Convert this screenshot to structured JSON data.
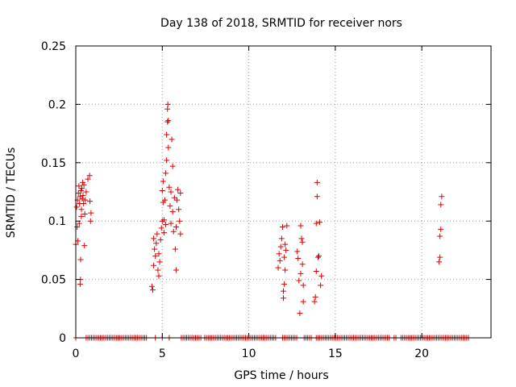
{
  "chart_data": {
    "type": "scatter",
    "title": "Day 138 of 2018, SRMTID for receiver nors",
    "xlabel": "GPS time / hours",
    "ylabel": "SRMTID / TECUs",
    "xlim": [
      0,
      24
    ],
    "ylim": [
      0,
      0.25
    ],
    "xticks": [
      0,
      5,
      10,
      15,
      20
    ],
    "xtick_labels": [
      "0",
      "5",
      "10",
      "15",
      "20"
    ],
    "yticks": [
      0,
      0.05,
      0.1,
      0.15,
      0.2,
      0.25
    ],
    "ytick_labels": [
      "0",
      "0.05",
      "0.1",
      "0.15",
      "0.2",
      "0.25"
    ],
    "grid": true,
    "marker": "+",
    "colors": {
      "points": "#e00000",
      "grid": "#a0a0a0",
      "axis": "#000000"
    },
    "series": [
      {
        "name": "SRMTID",
        "points": [
          [
            0.0,
            0.08
          ],
          [
            0.05,
            0.112
          ],
          [
            0.08,
            0.095
          ],
          [
            0.1,
            0.118
          ],
          [
            0.12,
            0.083
          ],
          [
            0.15,
            0.124
          ],
          [
            0.18,
            0.13
          ],
          [
            0.2,
            0.098
          ],
          [
            0.22,
            0.115
          ],
          [
            0.25,
            0.121
          ],
          [
            0.25,
            0.046
          ],
          [
            0.27,
            0.05
          ],
          [
            0.28,
            0.067
          ],
          [
            0.3,
            0.126
          ],
          [
            0.32,
            0.104
          ],
          [
            0.33,
            0.11
          ],
          [
            0.35,
            0.128
          ],
          [
            0.37,
            0.119
          ],
          [
            0.4,
            0.133
          ],
          [
            0.42,
            0.122
          ],
          [
            0.45,
            0.115
          ],
          [
            0.47,
            0.131
          ],
          [
            0.5,
            0.079
          ],
          [
            0.52,
            0.106
          ],
          [
            0.55,
            0.118
          ],
          [
            0.6,
            0.125
          ],
          [
            0.7,
            0.136
          ],
          [
            0.8,
            0.139
          ],
          [
            0.82,
            0.117
          ],
          [
            0.85,
            0.1
          ],
          [
            0.88,
            0.107
          ],
          [
            4.4,
            0.044
          ],
          [
            4.45,
            0.041
          ],
          [
            4.5,
            0.062
          ],
          [
            4.5,
            0.085
          ],
          [
            4.55,
            0.076
          ],
          [
            4.6,
            0.07
          ],
          [
            4.65,
            0.081
          ],
          [
            4.7,
            0.089
          ],
          [
            4.75,
            0.058
          ],
          [
            4.8,
            0.053
          ],
          [
            4.8,
            0.072
          ],
          [
            4.85,
            0.065
          ],
          [
            4.9,
            0.084
          ],
          [
            4.95,
            0.094
          ],
          [
            5.0,
            0.126
          ],
          [
            5.0,
            0.1
          ],
          [
            5.05,
            0.116
          ],
          [
            5.05,
            0.134
          ],
          [
            5.1,
            0.09
          ],
          [
            5.1,
            0.101
          ],
          [
            5.15,
            0.118
          ],
          [
            5.2,
            0.141
          ],
          [
            5.2,
            0.097
          ],
          [
            5.25,
            0.152
          ],
          [
            5.25,
            0.174
          ],
          [
            5.3,
            0.185
          ],
          [
            5.3,
            0.196
          ],
          [
            5.32,
            0.2
          ],
          [
            5.35,
            0.186
          ],
          [
            5.35,
            0.163
          ],
          [
            5.4,
            0.129
          ],
          [
            5.45,
            0.113
          ],
          [
            5.5,
            0.125
          ],
          [
            5.5,
            0.098
          ],
          [
            5.55,
            0.17
          ],
          [
            5.6,
            0.147
          ],
          [
            5.6,
            0.108
          ],
          [
            5.65,
            0.091
          ],
          [
            5.7,
            0.12
          ],
          [
            5.75,
            0.076
          ],
          [
            5.8,
            0.058
          ],
          [
            5.8,
            0.095
          ],
          [
            5.85,
            0.118
          ],
          [
            5.9,
            0.127
          ],
          [
            5.95,
            0.11
          ],
          [
            6.0,
            0.1
          ],
          [
            6.05,
            0.089
          ],
          [
            6.05,
            0.124
          ],
          [
            11.7,
            0.06
          ],
          [
            11.75,
            0.072
          ],
          [
            11.8,
            0.066
          ],
          [
            11.85,
            0.078
          ],
          [
            11.9,
            0.085
          ],
          [
            11.95,
            0.095
          ],
          [
            12.0,
            0.034
          ],
          [
            12.0,
            0.04
          ],
          [
            12.05,
            0.046
          ],
          [
            12.05,
            0.069
          ],
          [
            12.1,
            0.058
          ],
          [
            12.1,
            0.08
          ],
          [
            12.15,
            0.075
          ],
          [
            12.2,
            0.096
          ],
          [
            12.8,
            0.074
          ],
          [
            12.85,
            0.068
          ],
          [
            12.9,
            0.049
          ],
          [
            12.95,
            0.021
          ],
          [
            13.0,
            0.055
          ],
          [
            13.0,
            0.096
          ],
          [
            13.05,
            0.085
          ],
          [
            13.1,
            0.082
          ],
          [
            13.1,
            0.063
          ],
          [
            13.15,
            0.045
          ],
          [
            13.15,
            0.031
          ],
          [
            13.8,
            0.031
          ],
          [
            13.85,
            0.035
          ],
          [
            13.9,
            0.057
          ],
          [
            13.9,
            0.098
          ],
          [
            13.95,
            0.121
          ],
          [
            13.95,
            0.133
          ],
          [
            14.0,
            0.069
          ],
          [
            14.05,
            0.07
          ],
          [
            14.1,
            0.099
          ],
          [
            14.15,
            0.045
          ],
          [
            14.2,
            0.053
          ],
          [
            21.0,
            0.065
          ],
          [
            21.05,
            0.069
          ],
          [
            21.05,
            0.087
          ],
          [
            21.1,
            0.093
          ],
          [
            21.1,
            0.114
          ],
          [
            21.15,
            0.121
          ]
        ],
        "baseline_zero_ranges": [
          [
            0.0,
            0.05
          ],
          [
            0.6,
            4.1
          ],
          [
            4.6,
            4.7
          ],
          [
            5.0,
            5.05
          ],
          [
            5.4,
            5.45
          ],
          [
            6.1,
            7.3
          ],
          [
            7.45,
            11.65
          ],
          [
            11.95,
            12.8
          ],
          [
            13.2,
            13.7
          ],
          [
            13.9,
            17.5
          ],
          [
            17.6,
            18.2
          ],
          [
            18.4,
            18.6
          ],
          [
            18.8,
            22.7
          ]
        ]
      }
    ]
  }
}
